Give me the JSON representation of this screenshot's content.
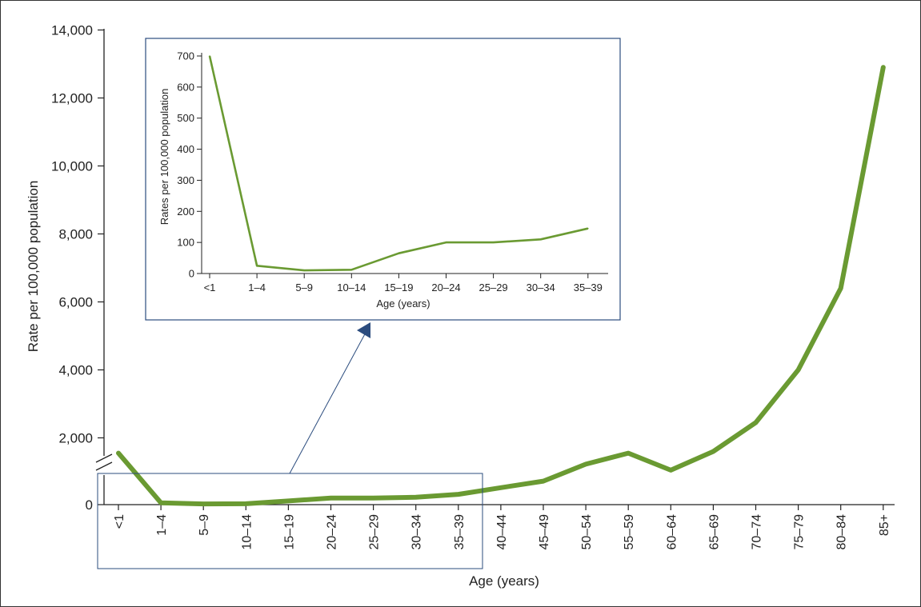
{
  "chart_data": [
    {
      "type": "line",
      "xlabel": "Age (years)",
      "ylabel": "Rate per 100,000 population",
      "categories": [
        "<1",
        "1–4",
        "5–9",
        "10–14",
        "15–19",
        "20–24",
        "25–29",
        "30–34",
        "35–39",
        "40–44",
        "45–49",
        "50–54",
        "55–59",
        "60–64",
        "65–69",
        "70–74",
        "75–79",
        "80–84",
        "85+"
      ],
      "y_tick_labels": [
        "0",
        "2,000",
        "4,000",
        "6,000",
        "8,000",
        "10,000",
        "12,000",
        "14,000"
      ],
      "ylim": [
        0,
        14000
      ],
      "axis_break": true,
      "series": [
        {
          "values": [
            700,
            25,
            10,
            12,
            50,
            90,
            90,
            100,
            140,
            230,
            320,
            550,
            700,
            1050,
            1600,
            2450,
            4000,
            6400,
            12900
          ]
        }
      ],
      "line_color": "#6a9a32",
      "grid": false
    },
    {
      "type": "line",
      "xlabel": "Age (years)",
      "ylabel": "Rates per 100,000 population",
      "categories": [
        "<1",
        "1–4",
        "5–9",
        "10–14",
        "15–19",
        "20–24",
        "25–29",
        "30–34",
        "35–39"
      ],
      "y_tick_labels": [
        "0",
        "100",
        "200",
        "300",
        "400",
        "500",
        "600",
        "700"
      ],
      "ylim": [
        0,
        700
      ],
      "series": [
        {
          "values": [
            700,
            25,
            10,
            12,
            65,
            100,
            100,
            110,
            145
          ]
        }
      ],
      "line_color": "#6a9a32",
      "grid": false
    }
  ],
  "colors": {
    "line": "#6a9a32",
    "highlight_box": "#2b4c7e",
    "axis": "#222222"
  }
}
